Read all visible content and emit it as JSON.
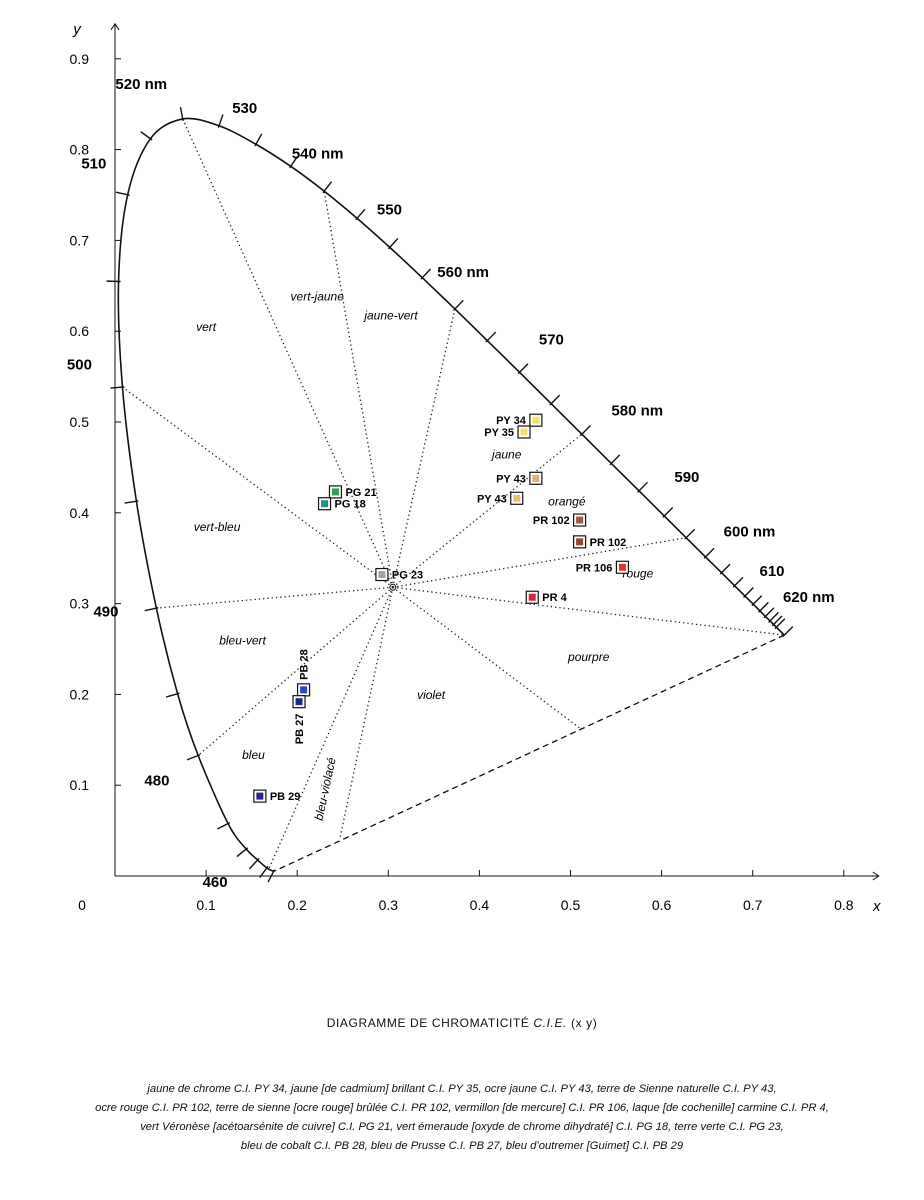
{
  "chart_data": {
    "type": "scatter",
    "title": "DIAGRAMME DE CHROMATICITÉ",
    "title_italic": "C.I.E.",
    "title_suffix": "(x y)",
    "xlabel": "x",
    "ylabel": "y",
    "xlim": [
      0,
      0.8
    ],
    "ylim": [
      0,
      0.9
    ],
    "x_ticks": [
      0.1,
      0.2,
      0.3,
      0.4,
      0.5,
      0.6,
      0.7,
      0.8
    ],
    "y_ticks": [
      0.1,
      0.2,
      0.3,
      0.4,
      0.5,
      0.6,
      0.7,
      0.8,
      0.9
    ],
    "origin_label": "0",
    "white_point": [
      0.305,
      0.318
    ],
    "spectral_locus": [
      [
        0.1741,
        0.005
      ],
      [
        0.1666,
        0.0089
      ],
      [
        0.1566,
        0.0177
      ],
      [
        0.144,
        0.0297
      ],
      [
        0.1241,
        0.0578
      ],
      [
        0.0913,
        0.1327
      ],
      [
        0.0687,
        0.2007
      ],
      [
        0.0454,
        0.295
      ],
      [
        0.0235,
        0.4127
      ],
      [
        0.0082,
        0.5384
      ],
      [
        0.0039,
        0.6548
      ],
      [
        0.0139,
        0.7502
      ],
      [
        0.0389,
        0.812
      ],
      [
        0.0743,
        0.8338
      ],
      [
        0.1142,
        0.8262
      ],
      [
        0.1547,
        0.8059
      ],
      [
        0.1929,
        0.7816
      ],
      [
        0.2296,
        0.7543
      ],
      [
        0.2658,
        0.7243
      ],
      [
        0.3016,
        0.6923
      ],
      [
        0.3373,
        0.6589
      ],
      [
        0.3731,
        0.6245
      ],
      [
        0.4087,
        0.5896
      ],
      [
        0.4441,
        0.5547
      ],
      [
        0.4788,
        0.5202
      ],
      [
        0.5125,
        0.4866
      ],
      [
        0.5448,
        0.4544
      ],
      [
        0.5752,
        0.4242
      ],
      [
        0.6029,
        0.3965
      ],
      [
        0.627,
        0.3725
      ],
      [
        0.6482,
        0.3514
      ],
      [
        0.6658,
        0.334
      ],
      [
        0.6801,
        0.3197
      ],
      [
        0.6915,
        0.3083
      ],
      [
        0.7006,
        0.2993
      ],
      [
        0.7079,
        0.292
      ],
      [
        0.714,
        0.2859
      ],
      [
        0.719,
        0.2809
      ],
      [
        0.723,
        0.277
      ],
      [
        0.726,
        0.274
      ],
      [
        0.7347,
        0.2653
      ]
    ],
    "purple_line": [
      [
        0.7347,
        0.2653
      ],
      [
        0.1741,
        0.005
      ]
    ],
    "wavelength_labels": [
      {
        "label": "460",
        "xy": [
          0.144,
          0.0297
        ]
      },
      {
        "label": "480",
        "xy": [
          0.0913,
          0.1327
        ]
      },
      {
        "label": "490",
        "xy": [
          0.0454,
          0.295
        ]
      },
      {
        "label": "500",
        "xy": [
          0.0082,
          0.5384
        ]
      },
      {
        "label": "510",
        "xy": [
          0.0139,
          0.7502
        ]
      },
      {
        "label": "520 nm",
        "xy": [
          0.0743,
          0.8338
        ]
      },
      {
        "label": "530",
        "xy": [
          0.1547,
          0.8059
        ]
      },
      {
        "label": "540 nm",
        "xy": [
          0.2296,
          0.7543
        ]
      },
      {
        "label": "550",
        "xy": [
          0.3016,
          0.6923
        ]
      },
      {
        "label": "560 nm",
        "xy": [
          0.3731,
          0.6245
        ]
      },
      {
        "label": "570",
        "xy": [
          0.4441,
          0.5547
        ]
      },
      {
        "label": "580 nm",
        "xy": [
          0.5125,
          0.4866
        ]
      },
      {
        "label": "590",
        "xy": [
          0.5752,
          0.4242
        ]
      },
      {
        "label": "600 nm",
        "xy": [
          0.627,
          0.3725
        ]
      },
      {
        "label": "610",
        "xy": [
          0.6658,
          0.334
        ]
      },
      {
        "label": "620 nm",
        "xy": [
          0.6915,
          0.3083
        ]
      }
    ],
    "dominant_lines": [
      [
        0.0743,
        0.8338
      ],
      [
        0.2296,
        0.7543
      ],
      [
        0.3731,
        0.6245
      ],
      [
        0.5125,
        0.4866
      ],
      [
        0.627,
        0.3725
      ],
      [
        0.7347,
        0.2653
      ],
      [
        0.51,
        0.163
      ],
      [
        0.247,
        0.042
      ],
      [
        0.169,
        0.008
      ],
      [
        0.0913,
        0.1327
      ],
      [
        0.0454,
        0.295
      ],
      [
        0.0082,
        0.5384
      ]
    ],
    "regions": [
      {
        "label": "vert",
        "xy": [
          0.1,
          0.6
        ]
      },
      {
        "label": "vert-jaune",
        "xy": [
          0.222,
          0.634
        ]
      },
      {
        "label": "jaune-vert",
        "xy": [
          0.303,
          0.613
        ]
      },
      {
        "label": "jaune",
        "xy": [
          0.43,
          0.46
        ]
      },
      {
        "label": "orangé",
        "xy": [
          0.496,
          0.408
        ]
      },
      {
        "label": "rouge",
        "xy": [
          0.574,
          0.329
        ]
      },
      {
        "label": "pourpre",
        "xy": [
          0.52,
          0.237
        ]
      },
      {
        "label": "violet",
        "xy": [
          0.347,
          0.195
        ]
      },
      {
        "label": "bleu-violacé",
        "xy": [
          0.235,
          0.095
        ]
      },
      {
        "label": "bleu",
        "xy": [
          0.152,
          0.129
        ]
      },
      {
        "label": "bleu-vert",
        "xy": [
          0.14,
          0.255
        ]
      },
      {
        "label": "vert-bleu",
        "xy": [
          0.112,
          0.38
        ]
      }
    ],
    "points": [
      {
        "label": "PY 34",
        "x": 0.462,
        "y": 0.502,
        "color": "#efe06a",
        "side": "left"
      },
      {
        "label": "PY 35",
        "x": 0.449,
        "y": 0.489,
        "color": "#f2e46e",
        "side": "left"
      },
      {
        "label": "PY 43",
        "x": 0.462,
        "y": 0.438,
        "color": "#ddb071",
        "side": "left"
      },
      {
        "label": "PY 43",
        "x": 0.441,
        "y": 0.416,
        "color": "#e6c07e",
        "side": "left"
      },
      {
        "label": "PR 102",
        "x": 0.51,
        "y": 0.392,
        "color": "#9b5b45",
        "side": "left"
      },
      {
        "label": "PR 102",
        "x": 0.51,
        "y": 0.368,
        "color": "#8e4632",
        "side": "right"
      },
      {
        "label": "PR 106",
        "x": 0.557,
        "y": 0.34,
        "color": "#d8382e",
        "side": "left"
      },
      {
        "label": "PR 4",
        "x": 0.458,
        "y": 0.307,
        "color": "#d6263f",
        "side": "right"
      },
      {
        "label": "PG 21",
        "x": 0.242,
        "y": 0.423,
        "color": "#2f9e5c",
        "side": "right"
      },
      {
        "label": "PG 18",
        "x": 0.23,
        "y": 0.41,
        "color": "#1f8f7e",
        "side": "right"
      },
      {
        "label": "PG 23",
        "x": 0.293,
        "y": 0.332,
        "color": "#a1a890",
        "side": "right"
      },
      {
        "label": "PB 28",
        "x": 0.207,
        "y": 0.205,
        "color": "#2b49b7",
        "side": "up"
      },
      {
        "label": "PB 27",
        "x": 0.202,
        "y": 0.192,
        "color": "#1d2c7a",
        "side": "down"
      },
      {
        "label": "PB 29",
        "x": 0.159,
        "y": 0.088,
        "color": "#2a258f",
        "side": "right"
      }
    ]
  },
  "legend_lines": [
    "jaune de chrome C.I. PY 34, jaune [de cadmium] brillant C.I. PY 35, ocre jaune C.I. PY 43, terre de Sienne naturelle C.I. PY 43,",
    "ocre rouge C.I. PR 102, terre de sienne [ocre rouge] brûlée C.I. PR 102, vermillon [de mercure] C.I. PR 106, laque [de cochenille] carmine C.I. PR 4,",
    "vert Véronèse [acétoarsénite de cuivre] C.I. PG 21, vert émeraude [oxyde de chrome dihydraté] C.I. PG 18, terre verte C.I. PG 23,",
    "bleu de cobalt C.I. PB 28, bleu de Prusse C.I. PB 27, bleu d’outremer [Guimet] C.I. PB 29"
  ]
}
